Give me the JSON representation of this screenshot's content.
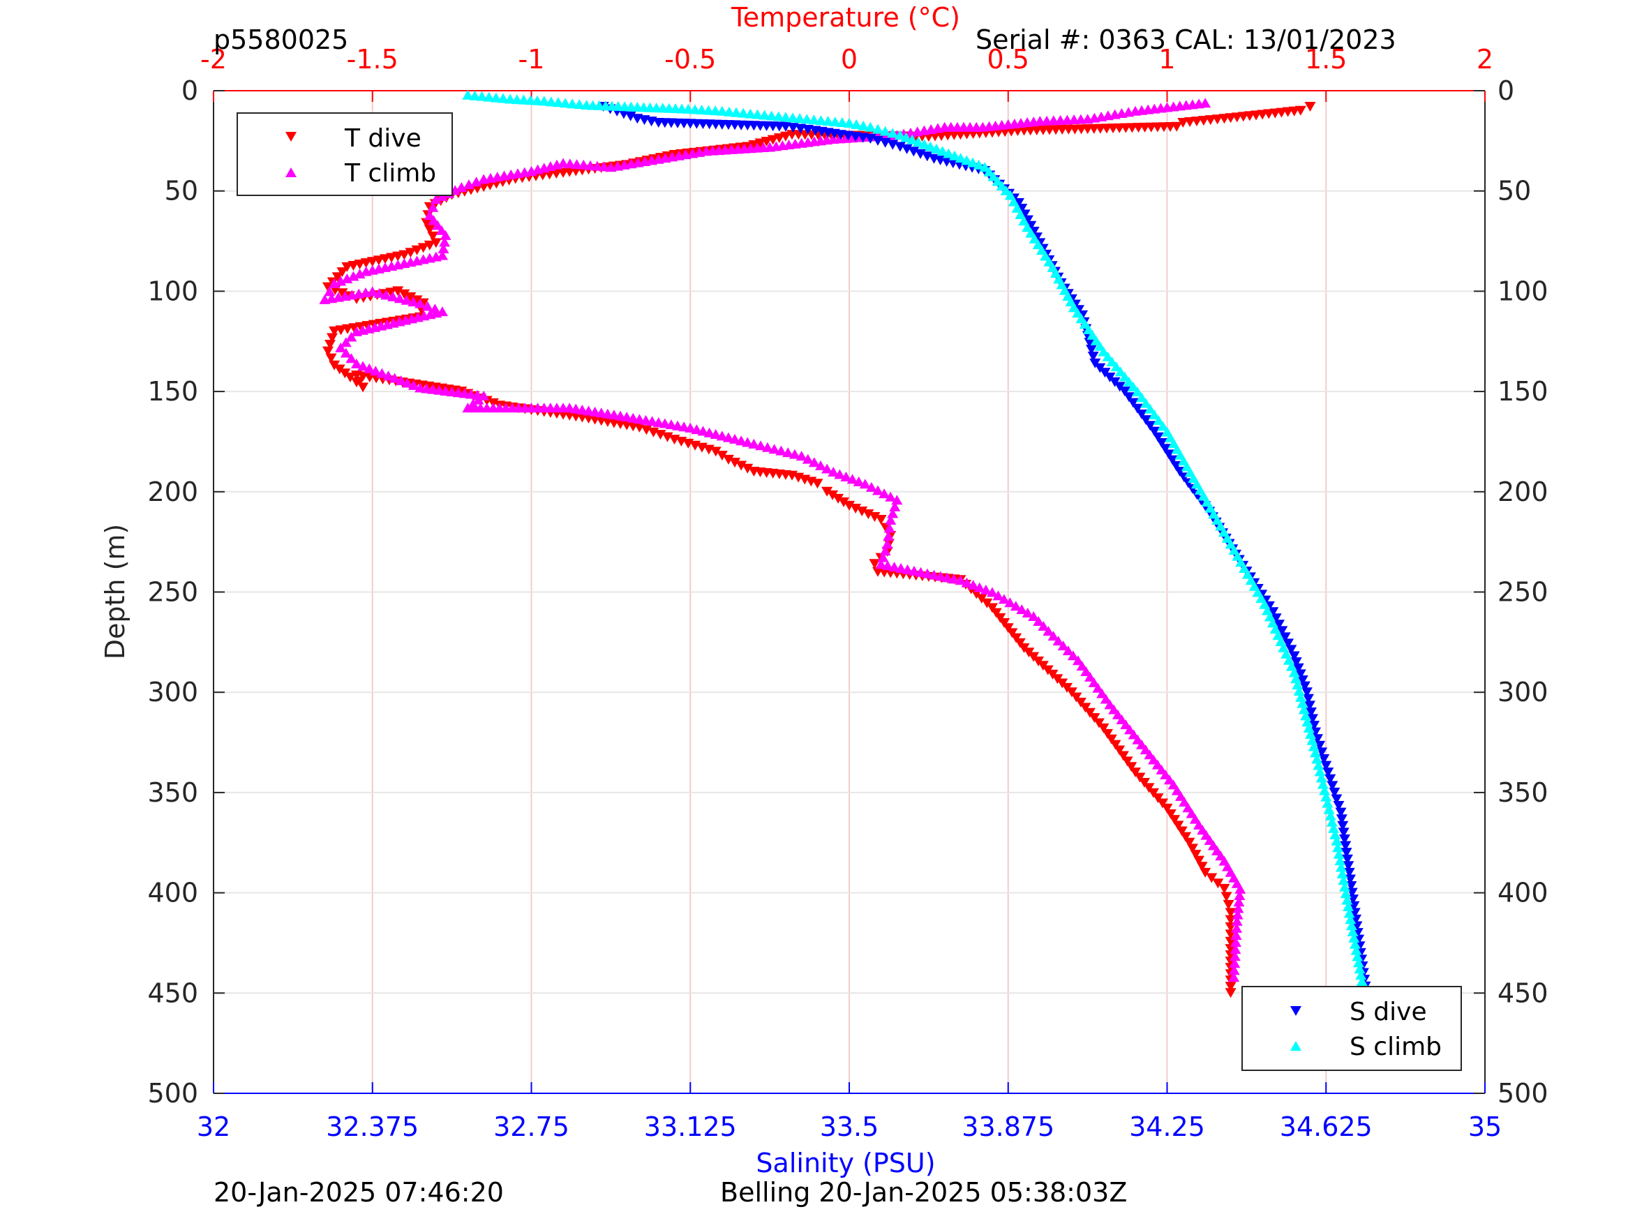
{
  "header": {
    "left_label": "p5580025",
    "right_label": "Serial #: 0363  CAL: 13/01/2023"
  },
  "footer": {
    "left_label": "20-Jan-2025 07:46:20",
    "center_label": "Belling 20-Jan-2025 05:38:03Z"
  },
  "colors": {
    "t_dive": "#ff0000",
    "t_climb": "#ff00ff",
    "s_dive": "#0000ff",
    "s_climb": "#00ffff",
    "temperature_axis": "#ff0000",
    "salinity_axis": "#0000ff"
  },
  "chart_data": {
    "type": "scatter",
    "top_axis": {
      "label": "Temperature (°C)",
      "range": [
        -2,
        2
      ],
      "ticks": [
        "-2",
        "-1.5",
        "-1",
        "-0.5",
        "0",
        "0.5",
        "1",
        "1.5",
        "2"
      ]
    },
    "bottom_axis": {
      "label": "Salinity (PSU)",
      "range": [
        32,
        35
      ],
      "ticks": [
        "32",
        "32.375",
        "32.75",
        "33.125",
        "33.5",
        "33.875",
        "34.25",
        "34.625",
        "35"
      ]
    },
    "y_axis": {
      "label": "Depth (m)",
      "range": [
        0,
        500
      ],
      "reversed": true,
      "ticks": [
        "0",
        "50",
        "100",
        "150",
        "200",
        "250",
        "300",
        "350",
        "400",
        "450",
        "500"
      ]
    },
    "grid": true,
    "legends": [
      {
        "position": "top-left",
        "entries": [
          "T dive",
          "T climb"
        ]
      },
      {
        "position": "bottom-right",
        "entries": [
          "S dive",
          "S climb"
        ]
      }
    ],
    "series": [
      {
        "name": "T dive",
        "axis": "temperature",
        "marker": "down-triangle",
        "x": [
          1.45,
          1.42,
          1.18,
          1.05,
          1.03,
          0.55,
          0.45,
          0.35,
          0.25,
          -0.18,
          -0.32,
          -0.55,
          -0.7,
          -0.9,
          -1.05,
          -1.15,
          -1.25,
          -1.32,
          -1.33,
          -1.3,
          -1.4,
          -1.58,
          -1.64,
          -1.55,
          -1.42,
          -1.34,
          -1.35,
          -1.62,
          -1.64,
          -1.62,
          -1.57,
          -1.53,
          -1.55,
          -1.22,
          -1.1,
          -0.84,
          -0.66,
          -0.55,
          -0.42,
          -0.38,
          -0.3,
          -0.18,
          -0.1,
          -0.07,
          0.0,
          0.1,
          0.13,
          0.12,
          0.08,
          0.09,
          0.35,
          0.45,
          0.55,
          0.7,
          0.8,
          0.9,
          1.0,
          1.07,
          1.12,
          1.18,
          1.2,
          1.2,
          1.2
        ],
        "y": [
          8,
          10,
          14,
          16,
          18,
          20,
          21,
          22,
          23,
          22,
          28,
          32,
          37,
          41,
          44,
          48,
          52,
          58,
          66,
          76,
          82,
          88,
          98,
          104,
          100,
          106,
          113,
          120,
          130,
          137,
          143,
          148,
          142,
          150,
          157,
          163,
          168,
          174,
          180,
          184,
          190,
          192,
          196,
          200,
          207,
          214,
          222,
          230,
          236,
          240,
          244,
          258,
          278,
          300,
          318,
          340,
          358,
          375,
          390,
          398,
          410,
          428,
          450
        ]
      },
      {
        "name": "T climb",
        "axis": "temperature",
        "marker": "up-triangle",
        "x": [
          1.12,
          0.9,
          0.75,
          0.6,
          0.42,
          0.3,
          0.15,
          -0.05,
          -0.25,
          -0.45,
          -0.6,
          -0.75,
          -0.9,
          -1.0,
          -1.15,
          -1.22,
          -1.3,
          -1.32,
          -1.27,
          -1.28,
          -1.52,
          -1.62,
          -1.65,
          -1.5,
          -1.35,
          -1.28,
          -1.55,
          -1.6,
          -1.55,
          -1.35,
          -1.15,
          -1.2,
          -0.88,
          -0.72,
          -0.5,
          -0.4,
          -0.3,
          -0.15,
          -0.05,
          0.05,
          0.15,
          0.13,
          0.12,
          0.1,
          0.35,
          0.45,
          0.58,
          0.72,
          0.82,
          0.92,
          1.02,
          1.1,
          1.18,
          1.23,
          1.22,
          1.21
        ],
        "y": [
          6,
          10,
          14,
          15,
          18,
          18,
          22,
          24,
          28,
          30,
          34,
          38,
          36,
          40,
          44,
          48,
          54,
          62,
          72,
          82,
          90,
          96,
          104,
          100,
          106,
          110,
          120,
          128,
          136,
          148,
          152,
          158,
          158,
          162,
          168,
          172,
          176,
          182,
          190,
          196,
          204,
          214,
          226,
          236,
          244,
          250,
          262,
          284,
          306,
          326,
          346,
          366,
          384,
          398,
          414,
          442
        ]
      },
      {
        "name": "S dive",
        "axis": "salinity",
        "marker": "down-triangle",
        "x": [
          32.92,
          33.0,
          33.05,
          33.35,
          33.42,
          33.48,
          33.55,
          33.62,
          33.7,
          33.82,
          33.9,
          33.95,
          34.0,
          34.05,
          34.08,
          34.15,
          34.22,
          34.28,
          34.35,
          34.42,
          34.5,
          34.55,
          34.58,
          34.6,
          34.63,
          34.66,
          34.68,
          34.7,
          34.72
        ],
        "y": [
          8,
          14,
          16,
          18,
          20,
          22,
          24,
          28,
          34,
          40,
          56,
          76,
          96,
          112,
          136,
          150,
          170,
          190,
          210,
          234,
          260,
          282,
          300,
          320,
          340,
          360,
          390,
          420,
          450
        ]
      },
      {
        "name": "S climb",
        "axis": "salinity",
        "marker": "up-triangle",
        "x": [
          32.6,
          32.7,
          32.78,
          32.88,
          33.0,
          33.12,
          33.2,
          33.3,
          33.4,
          33.5,
          33.55,
          33.62,
          33.72,
          33.82,
          33.88,
          33.92,
          33.98,
          34.03,
          34.1,
          34.18,
          34.25,
          34.32,
          34.4,
          34.48,
          34.55,
          34.6,
          34.65,
          34.68,
          34.71
        ],
        "y": [
          2,
          4,
          5,
          7,
          8,
          9,
          10,
          12,
          14,
          16,
          18,
          22,
          30,
          38,
          52,
          68,
          88,
          108,
          130,
          150,
          170,
          196,
          226,
          256,
          290,
          330,
          374,
          410,
          444
        ]
      }
    ]
  }
}
